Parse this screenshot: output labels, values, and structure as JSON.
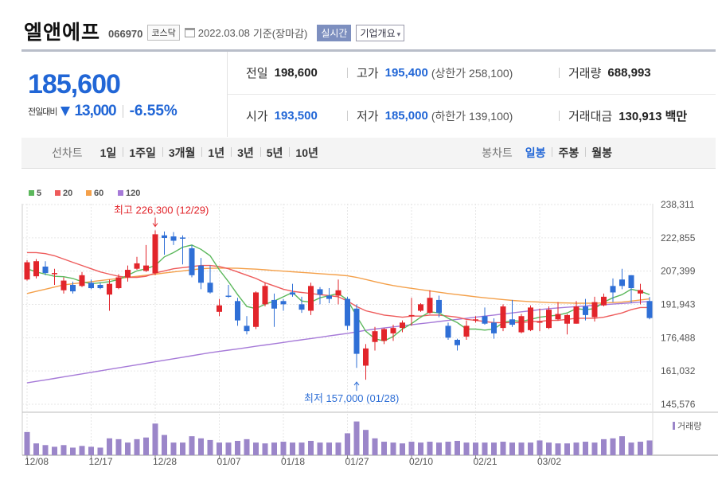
{
  "header": {
    "name": "엘앤에프",
    "code": "066970",
    "market": "코스닥",
    "date": "2022.03.08",
    "basis": "기준(장마감)",
    "realtime_label": "실시간",
    "company_label": "기업개요"
  },
  "quote": {
    "price": "185,600",
    "change_label": "전일대비",
    "change": "13,000",
    "change_pct": "-6.55%",
    "prev_label": "전일",
    "prev": "198,600",
    "high_label": "고가",
    "high": "195,400",
    "upper_limit": "(상한가 258,100)",
    "volume_label": "거래량",
    "volume": "688,993",
    "open_label": "시가",
    "open": "193,500",
    "low_label": "저가",
    "low": "185,000",
    "lower_limit": "(하한가 139,100)",
    "amount_label": "거래대금",
    "amount": "130,913 백만"
  },
  "period_bar": {
    "line_label": "선차트",
    "line_options": [
      "1일",
      "1주일",
      "3개월",
      "1년",
      "3년",
      "5년",
      "10년"
    ],
    "candle_label": "봉차트",
    "candle_options": [
      "일봉",
      "주봉",
      "월봉"
    ],
    "candle_selected": "일봉"
  },
  "chart_data": {
    "type": "candlestick",
    "up_color": "#e2252b",
    "down_color": "#2f6fd6",
    "legend": [
      {
        "name": "5",
        "color": "#5cb85c"
      },
      {
        "name": "20",
        "color": "#ee5b5b"
      },
      {
        "name": "60",
        "color": "#f4a04a"
      },
      {
        "name": "120",
        "color": "#a67ad8"
      }
    ],
    "y_ticks": [
      "238,311",
      "222,855",
      "207,399",
      "191,943",
      "176,488",
      "161,032",
      "145,576"
    ],
    "y_range": [
      145576,
      238311
    ],
    "x_ticks": [
      {
        "label": "12/08",
        "index": 0
      },
      {
        "label": "12/17",
        "index": 7
      },
      {
        "label": "12/28",
        "index": 14
      },
      {
        "label": "01/07",
        "index": 21
      },
      {
        "label": "01/18",
        "index": 28
      },
      {
        "label": "01/27",
        "index": 35
      },
      {
        "label": "02/10",
        "index": 42
      },
      {
        "label": "02/21",
        "index": 49
      },
      {
        "label": "03/02",
        "index": 56
      }
    ],
    "max_annotation": {
      "text": "최고 226,300 (12/29)",
      "index": 14,
      "value": 226300
    },
    "min_annotation": {
      "text": "최저 157,000 (01/28)",
      "index": 36,
      "value": 157000
    },
    "volume_label": "거래량",
    "candles": [
      {
        "o": 203500,
        "h": 212500,
        "l": 203000,
        "c": 211500
      },
      {
        "o": 205000,
        "h": 213000,
        "l": 204000,
        "c": 212000
      },
      {
        "o": 209500,
        "h": 212000,
        "l": 205500,
        "c": 206500
      },
      {
        "o": 206000,
        "h": 208500,
        "l": 201000,
        "c": 206500
      },
      {
        "o": 198500,
        "h": 204500,
        "l": 197000,
        "c": 203000
      },
      {
        "o": 201000,
        "h": 202500,
        "l": 197000,
        "c": 198000
      },
      {
        "o": 200500,
        "h": 207000,
        "l": 200000,
        "c": 205500
      },
      {
        "o": 202000,
        "h": 203500,
        "l": 199000,
        "c": 199500
      },
      {
        "o": 201000,
        "h": 202000,
        "l": 199000,
        "c": 199500
      },
      {
        "o": 196500,
        "h": 203500,
        "l": 189000,
        "c": 201500
      },
      {
        "o": 199500,
        "h": 206000,
        "l": 199000,
        "c": 204500
      },
      {
        "o": 204500,
        "h": 210000,
        "l": 202500,
        "c": 208000
      },
      {
        "o": 208500,
        "h": 214000,
        "l": 208000,
        "c": 211000
      },
      {
        "o": 207500,
        "h": 219500,
        "l": 207000,
        "c": 210000
      },
      {
        "o": 206500,
        "h": 226300,
        "l": 205500,
        "c": 224500
      },
      {
        "o": 224000,
        "h": 225800,
        "l": 215000,
        "c": 222800
      },
      {
        "o": 223500,
        "h": 225500,
        "l": 219500,
        "c": 221500
      },
      {
        "o": 223000,
        "h": 224000,
        "l": 210500,
        "c": 222500
      },
      {
        "o": 218000,
        "h": 219500,
        "l": 204500,
        "c": 205500
      },
      {
        "o": 210000,
        "h": 213500,
        "l": 199000,
        "c": 202000
      },
      {
        "o": 202000,
        "h": 210000,
        "l": 197000,
        "c": 197500
      },
      {
        "o": 188500,
        "h": 194500,
        "l": 186500,
        "c": 191500
      },
      {
        "o": 196000,
        "h": 201000,
        "l": 195000,
        "c": 195500
      },
      {
        "o": 193500,
        "h": 195000,
        "l": 182000,
        "c": 184500
      },
      {
        "o": 182000,
        "h": 186500,
        "l": 178000,
        "c": 179500
      },
      {
        "o": 181500,
        "h": 198000,
        "l": 180500,
        "c": 197500
      },
      {
        "o": 192000,
        "h": 202000,
        "l": 191000,
        "c": 200500
      },
      {
        "o": 194000,
        "h": 197000,
        "l": 181500,
        "c": 190000
      },
      {
        "o": 193500,
        "h": 194500,
        "l": 189000,
        "c": 192000
      },
      {
        "o": 197500,
        "h": 201500,
        "l": 195500,
        "c": 196500
      },
      {
        "o": 192000,
        "h": 195500,
        "l": 188000,
        "c": 189500
      },
      {
        "o": 189000,
        "h": 202000,
        "l": 187000,
        "c": 200500
      },
      {
        "o": 199000,
        "h": 200000,
        "l": 192000,
        "c": 196500
      },
      {
        "o": 196000,
        "h": 199500,
        "l": 192500,
        "c": 194500
      },
      {
        "o": 196000,
        "h": 203500,
        "l": 192000,
        "c": 198500
      },
      {
        "o": 194500,
        "h": 195500,
        "l": 180000,
        "c": 182000
      },
      {
        "o": 190000,
        "h": 192000,
        "l": 162500,
        "c": 169000
      },
      {
        "o": 163500,
        "h": 173500,
        "l": 157000,
        "c": 171500
      },
      {
        "o": 174500,
        "h": 181500,
        "l": 170500,
        "c": 179500
      },
      {
        "o": 175000,
        "h": 181000,
        "l": 173500,
        "c": 180500
      },
      {
        "o": 178500,
        "h": 182500,
        "l": 175000,
        "c": 181000
      },
      {
        "o": 181000,
        "h": 184500,
        "l": 179000,
        "c": 183500
      },
      {
        "o": 186500,
        "h": 195000,
        "l": 182000,
        "c": 187000
      },
      {
        "o": 189000,
        "h": 192500,
        "l": 188500,
        "c": 192000
      },
      {
        "o": 188000,
        "h": 198500,
        "l": 187500,
        "c": 195000
      },
      {
        "o": 194000,
        "h": 196000,
        "l": 186000,
        "c": 188000
      },
      {
        "o": 182000,
        "h": 183500,
        "l": 175500,
        "c": 176500
      },
      {
        "o": 175500,
        "h": 176000,
        "l": 170500,
        "c": 173000
      },
      {
        "o": 177000,
        "h": 184500,
        "l": 175500,
        "c": 182000
      },
      {
        "o": 184500,
        "h": 186500,
        "l": 183500,
        "c": 185000
      },
      {
        "o": 186500,
        "h": 190500,
        "l": 182500,
        "c": 183000
      },
      {
        "o": 183500,
        "h": 185500,
        "l": 176000,
        "c": 178500
      },
      {
        "o": 181000,
        "h": 192000,
        "l": 179500,
        "c": 191000
      },
      {
        "o": 185000,
        "h": 194000,
        "l": 181500,
        "c": 182500
      },
      {
        "o": 179000,
        "h": 187500,
        "l": 178500,
        "c": 186500
      },
      {
        "o": 180000,
        "h": 191500,
        "l": 179500,
        "c": 190500
      },
      {
        "o": 183500,
        "h": 190000,
        "l": 179500,
        "c": 184000
      },
      {
        "o": 181000,
        "h": 191000,
        "l": 180500,
        "c": 189500
      },
      {
        "o": 185000,
        "h": 193000,
        "l": 184500,
        "c": 187500
      },
      {
        "o": 183000,
        "h": 187500,
        "l": 178000,
        "c": 187000
      },
      {
        "o": 183000,
        "h": 193500,
        "l": 183000,
        "c": 191000
      },
      {
        "o": 191000,
        "h": 194500,
        "l": 184500,
        "c": 187000
      },
      {
        "o": 186000,
        "h": 195500,
        "l": 184000,
        "c": 193000
      },
      {
        "o": 191500,
        "h": 197000,
        "l": 191000,
        "c": 195500
      },
      {
        "o": 200500,
        "h": 204000,
        "l": 193000,
        "c": 197500
      },
      {
        "o": 203500,
        "h": 208500,
        "l": 199000,
        "c": 200500
      },
      {
        "o": 205500,
        "h": 205500,
        "l": 192500,
        "c": 199500
      },
      {
        "o": 197000,
        "h": 201500,
        "l": 192000,
        "c": 198600
      },
      {
        "o": 193500,
        "h": 195400,
        "l": 185000,
        "c": 185600
      }
    ],
    "volumes": [
      55,
      28,
      24,
      20,
      24,
      18,
      22,
      20,
      18,
      40,
      38,
      30,
      38,
      42,
      75,
      48,
      30,
      30,
      45,
      40,
      36,
      30,
      30,
      34,
      38,
      30,
      28,
      30,
      32,
      30,
      30,
      34,
      30,
      30,
      30,
      52,
      80,
      60,
      40,
      32,
      30,
      28,
      32,
      30,
      32,
      30,
      32,
      34,
      30,
      30,
      30,
      30,
      32,
      30,
      30,
      30,
      35,
      30,
      28,
      28,
      30,
      32,
      30,
      38,
      40,
      45,
      30,
      32,
      35
    ],
    "ma5": [
      208500,
      207000,
      206000,
      205000,
      204800,
      204000,
      202500,
      201500,
      202000,
      202500,
      203500,
      205500,
      207500,
      208500,
      210000,
      214000,
      216000,
      218500,
      219500,
      217500,
      214500,
      208000,
      202500,
      196500,
      191000,
      190000,
      192000,
      193500,
      195500,
      197500,
      193500,
      193000,
      195000,
      196000,
      197000,
      194000,
      186500,
      179500,
      176000,
      175000,
      177000,
      180500,
      183000,
      186000,
      188500,
      188000,
      185500,
      183500,
      180500,
      180500,
      180000,
      180500,
      183500,
      184500,
      184000,
      185000,
      186000,
      186500,
      187000,
      188000,
      190000,
      189500,
      190000,
      193000,
      195000,
      196500,
      199000,
      198000,
      196500
    ],
    "ma20": [
      216000,
      216000,
      215500,
      214500,
      213000,
      211500,
      210000,
      208500,
      207000,
      206000,
      205000,
      204500,
      204500,
      205000,
      206500,
      207500,
      208500,
      209000,
      209500,
      210000,
      210000,
      209500,
      208500,
      207000,
      205500,
      204000,
      202000,
      200500,
      199000,
      198000,
      197500,
      197000,
      196500,
      196000,
      195500,
      193500,
      191000,
      189000,
      188000,
      187000,
      186500,
      186000,
      186500,
      186500,
      187000,
      187000,
      186500,
      186000,
      185000,
      184500,
      184000,
      183500,
      183500,
      183500,
      183500,
      184000,
      184000,
      184500,
      184500,
      185000,
      185500,
      185500,
      185500,
      186000,
      187000,
      188000,
      189500,
      190500,
      190500
    ],
    "ma60": [
      197000,
      198000,
      199000,
      200000,
      201000,
      201500,
      202000,
      202500,
      203000,
      203500,
      204000,
      204500,
      205000,
      205500,
      206000,
      206500,
      207000,
      207500,
      208000,
      208500,
      208700,
      208800,
      208800,
      208700,
      208500,
      208300,
      208000,
      207700,
      207400,
      207100,
      206800,
      206500,
      206200,
      205900,
      205600,
      205200,
      204500,
      203500,
      202500,
      201500,
      200700,
      200000,
      199400,
      198800,
      198200,
      197600,
      197000,
      196500,
      196000,
      195500,
      195000,
      194600,
      194200,
      193800,
      193500,
      193200,
      193000,
      192800,
      192700,
      192600,
      192500,
      192500,
      192500,
      192600,
      192800,
      193000,
      193500,
      194000,
      194500
    ],
    "ma120": [
      155500,
      156200,
      156900,
      157600,
      158300,
      159000,
      159700,
      160400,
      161100,
      161800,
      162500,
      163200,
      163900,
      164600,
      165300,
      166000,
      166700,
      167400,
      168100,
      168800,
      169500,
      170100,
      170700,
      171300,
      171900,
      172500,
      173100,
      173700,
      174300,
      174900,
      175500,
      176100,
      176700,
      177300,
      177900,
      178500,
      179200,
      179900,
      180500,
      181000,
      181500,
      182000,
      182500,
      183000,
      183500,
      184000,
      184500,
      185000,
      185500,
      186000,
      186500,
      187000,
      187500,
      188000,
      188500,
      189000,
      189500,
      190000,
      190300,
      190600,
      190900,
      191200,
      191500,
      191800,
      192100,
      192400,
      192700,
      193000,
      193300
    ]
  }
}
